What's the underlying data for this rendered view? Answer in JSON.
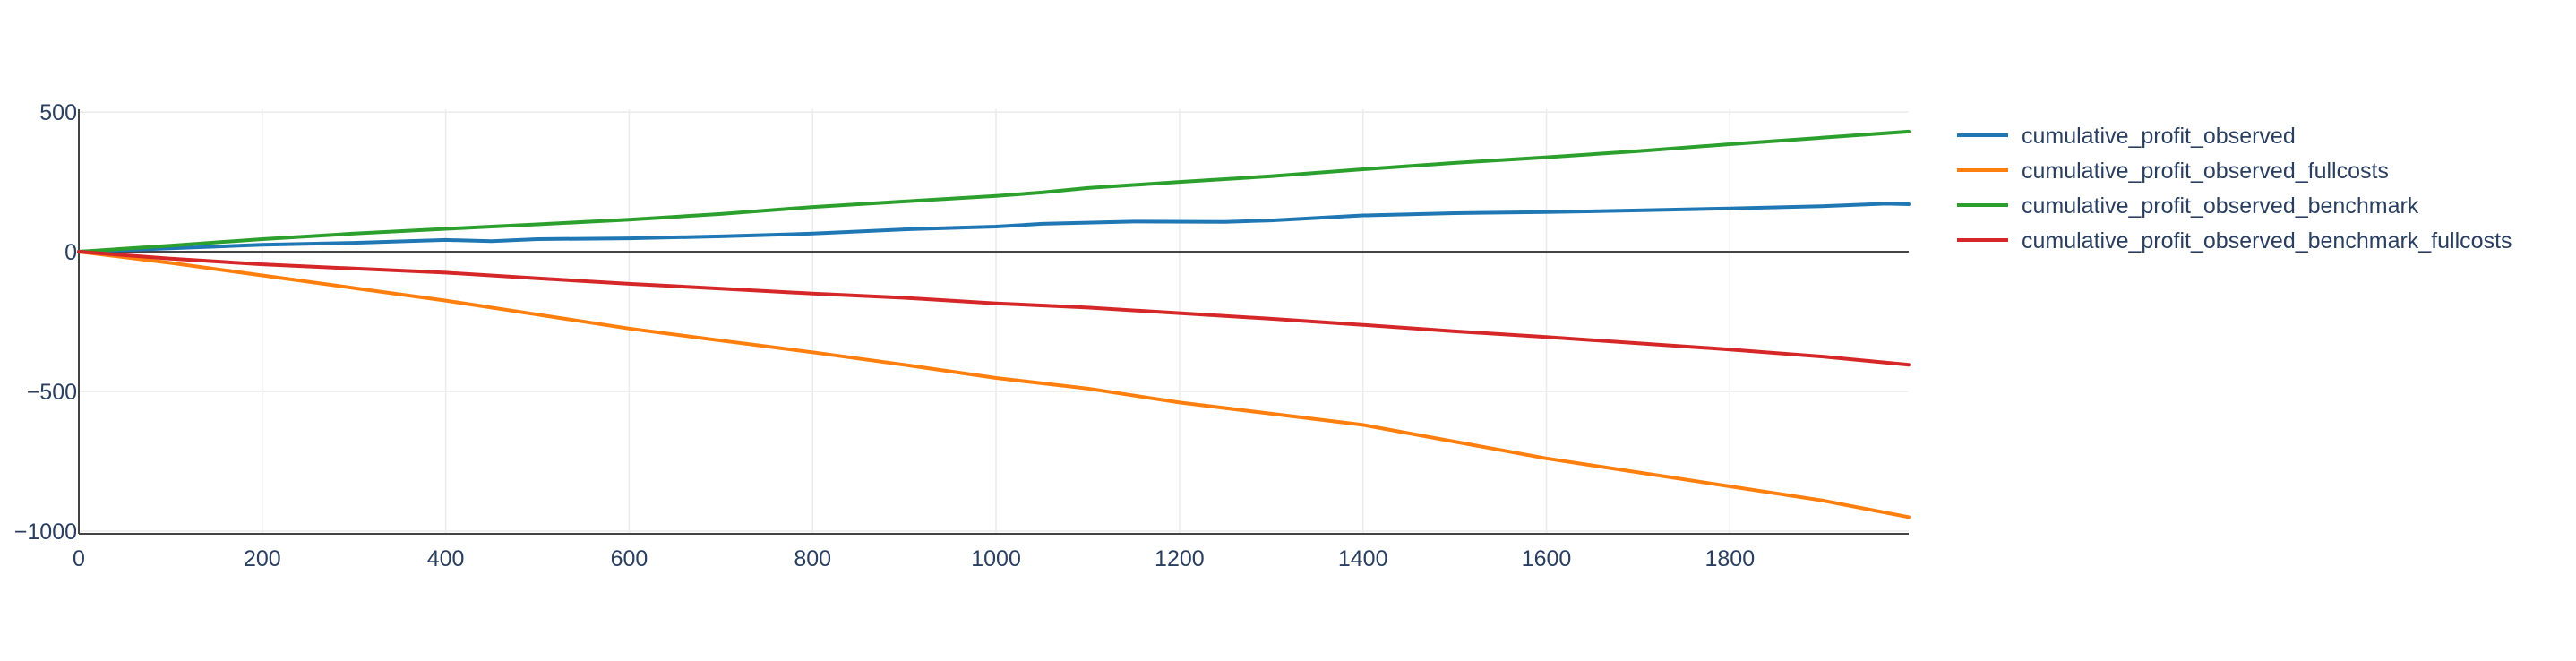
{
  "chart_data": {
    "type": "line",
    "title": "",
    "xlabel": "",
    "ylabel": "",
    "xlim": [
      0,
      1995
    ],
    "ylim": [
      -1010,
      510
    ],
    "x_ticks": [
      0,
      200,
      400,
      600,
      800,
      1000,
      1200,
      1400,
      1600,
      1800
    ],
    "y_ticks": [
      500,
      0,
      -500,
      -1000
    ],
    "x_tick_labels": [
      "0",
      "200",
      "400",
      "600",
      "800",
      "1000",
      "1200",
      "1400",
      "1600",
      "1800"
    ],
    "y_tick_labels": [
      "500",
      "0",
      "−500",
      "−1000"
    ],
    "grid": true,
    "legend_position": "right",
    "series": [
      {
        "name": "cumulative_profit_observed",
        "color": "#1f77b4",
        "x": [
          0,
          100,
          200,
          300,
          400,
          450,
          500,
          600,
          700,
          800,
          900,
          1000,
          1050,
          1150,
          1250,
          1300,
          1400,
          1500,
          1600,
          1700,
          1800,
          1900,
          1970,
          1995
        ],
        "y": [
          0,
          12,
          25,
          32,
          42,
          38,
          45,
          48,
          55,
          65,
          80,
          90,
          100,
          108,
          107,
          112,
          130,
          138,
          142,
          148,
          155,
          163,
          172,
          170
        ]
      },
      {
        "name": "cumulative_profit_observed_fullcosts",
        "color": "#ff7f0e",
        "x": [
          0,
          100,
          200,
          300,
          400,
          500,
          600,
          700,
          800,
          900,
          1000,
          1100,
          1200,
          1300,
          1400,
          1500,
          1600,
          1700,
          1800,
          1900,
          1995
        ],
        "y": [
          0,
          -40,
          -85,
          -130,
          -175,
          -225,
          -275,
          -318,
          -360,
          -405,
          -452,
          -490,
          -540,
          -580,
          -620,
          -680,
          -740,
          -790,
          -840,
          -890,
          -950
        ]
      },
      {
        "name": "cumulative_profit_observed_benchmark",
        "color": "#2ca02c",
        "x": [
          0,
          100,
          200,
          300,
          400,
          500,
          600,
          700,
          800,
          900,
          1000,
          1050,
          1100,
          1200,
          1300,
          1400,
          1500,
          1600,
          1700,
          1800,
          1900,
          1995
        ],
        "y": [
          0,
          22,
          45,
          65,
          82,
          98,
          115,
          135,
          160,
          180,
          200,
          212,
          228,
          250,
          270,
          295,
          318,
          338,
          360,
          385,
          408,
          430
        ]
      },
      {
        "name": "cumulative_profit_observed_benchmark_fullcosts",
        "color": "#d62728",
        "x": [
          0,
          100,
          200,
          300,
          400,
          500,
          600,
          700,
          800,
          900,
          1000,
          1100,
          1200,
          1300,
          1400,
          1500,
          1600,
          1700,
          1800,
          1900,
          1995
        ],
        "y": [
          0,
          -25,
          -45,
          -60,
          -75,
          -95,
          -115,
          -132,
          -150,
          -165,
          -185,
          -200,
          -220,
          -240,
          -262,
          -285,
          -305,
          -328,
          -350,
          -375,
          -405
        ]
      }
    ]
  }
}
